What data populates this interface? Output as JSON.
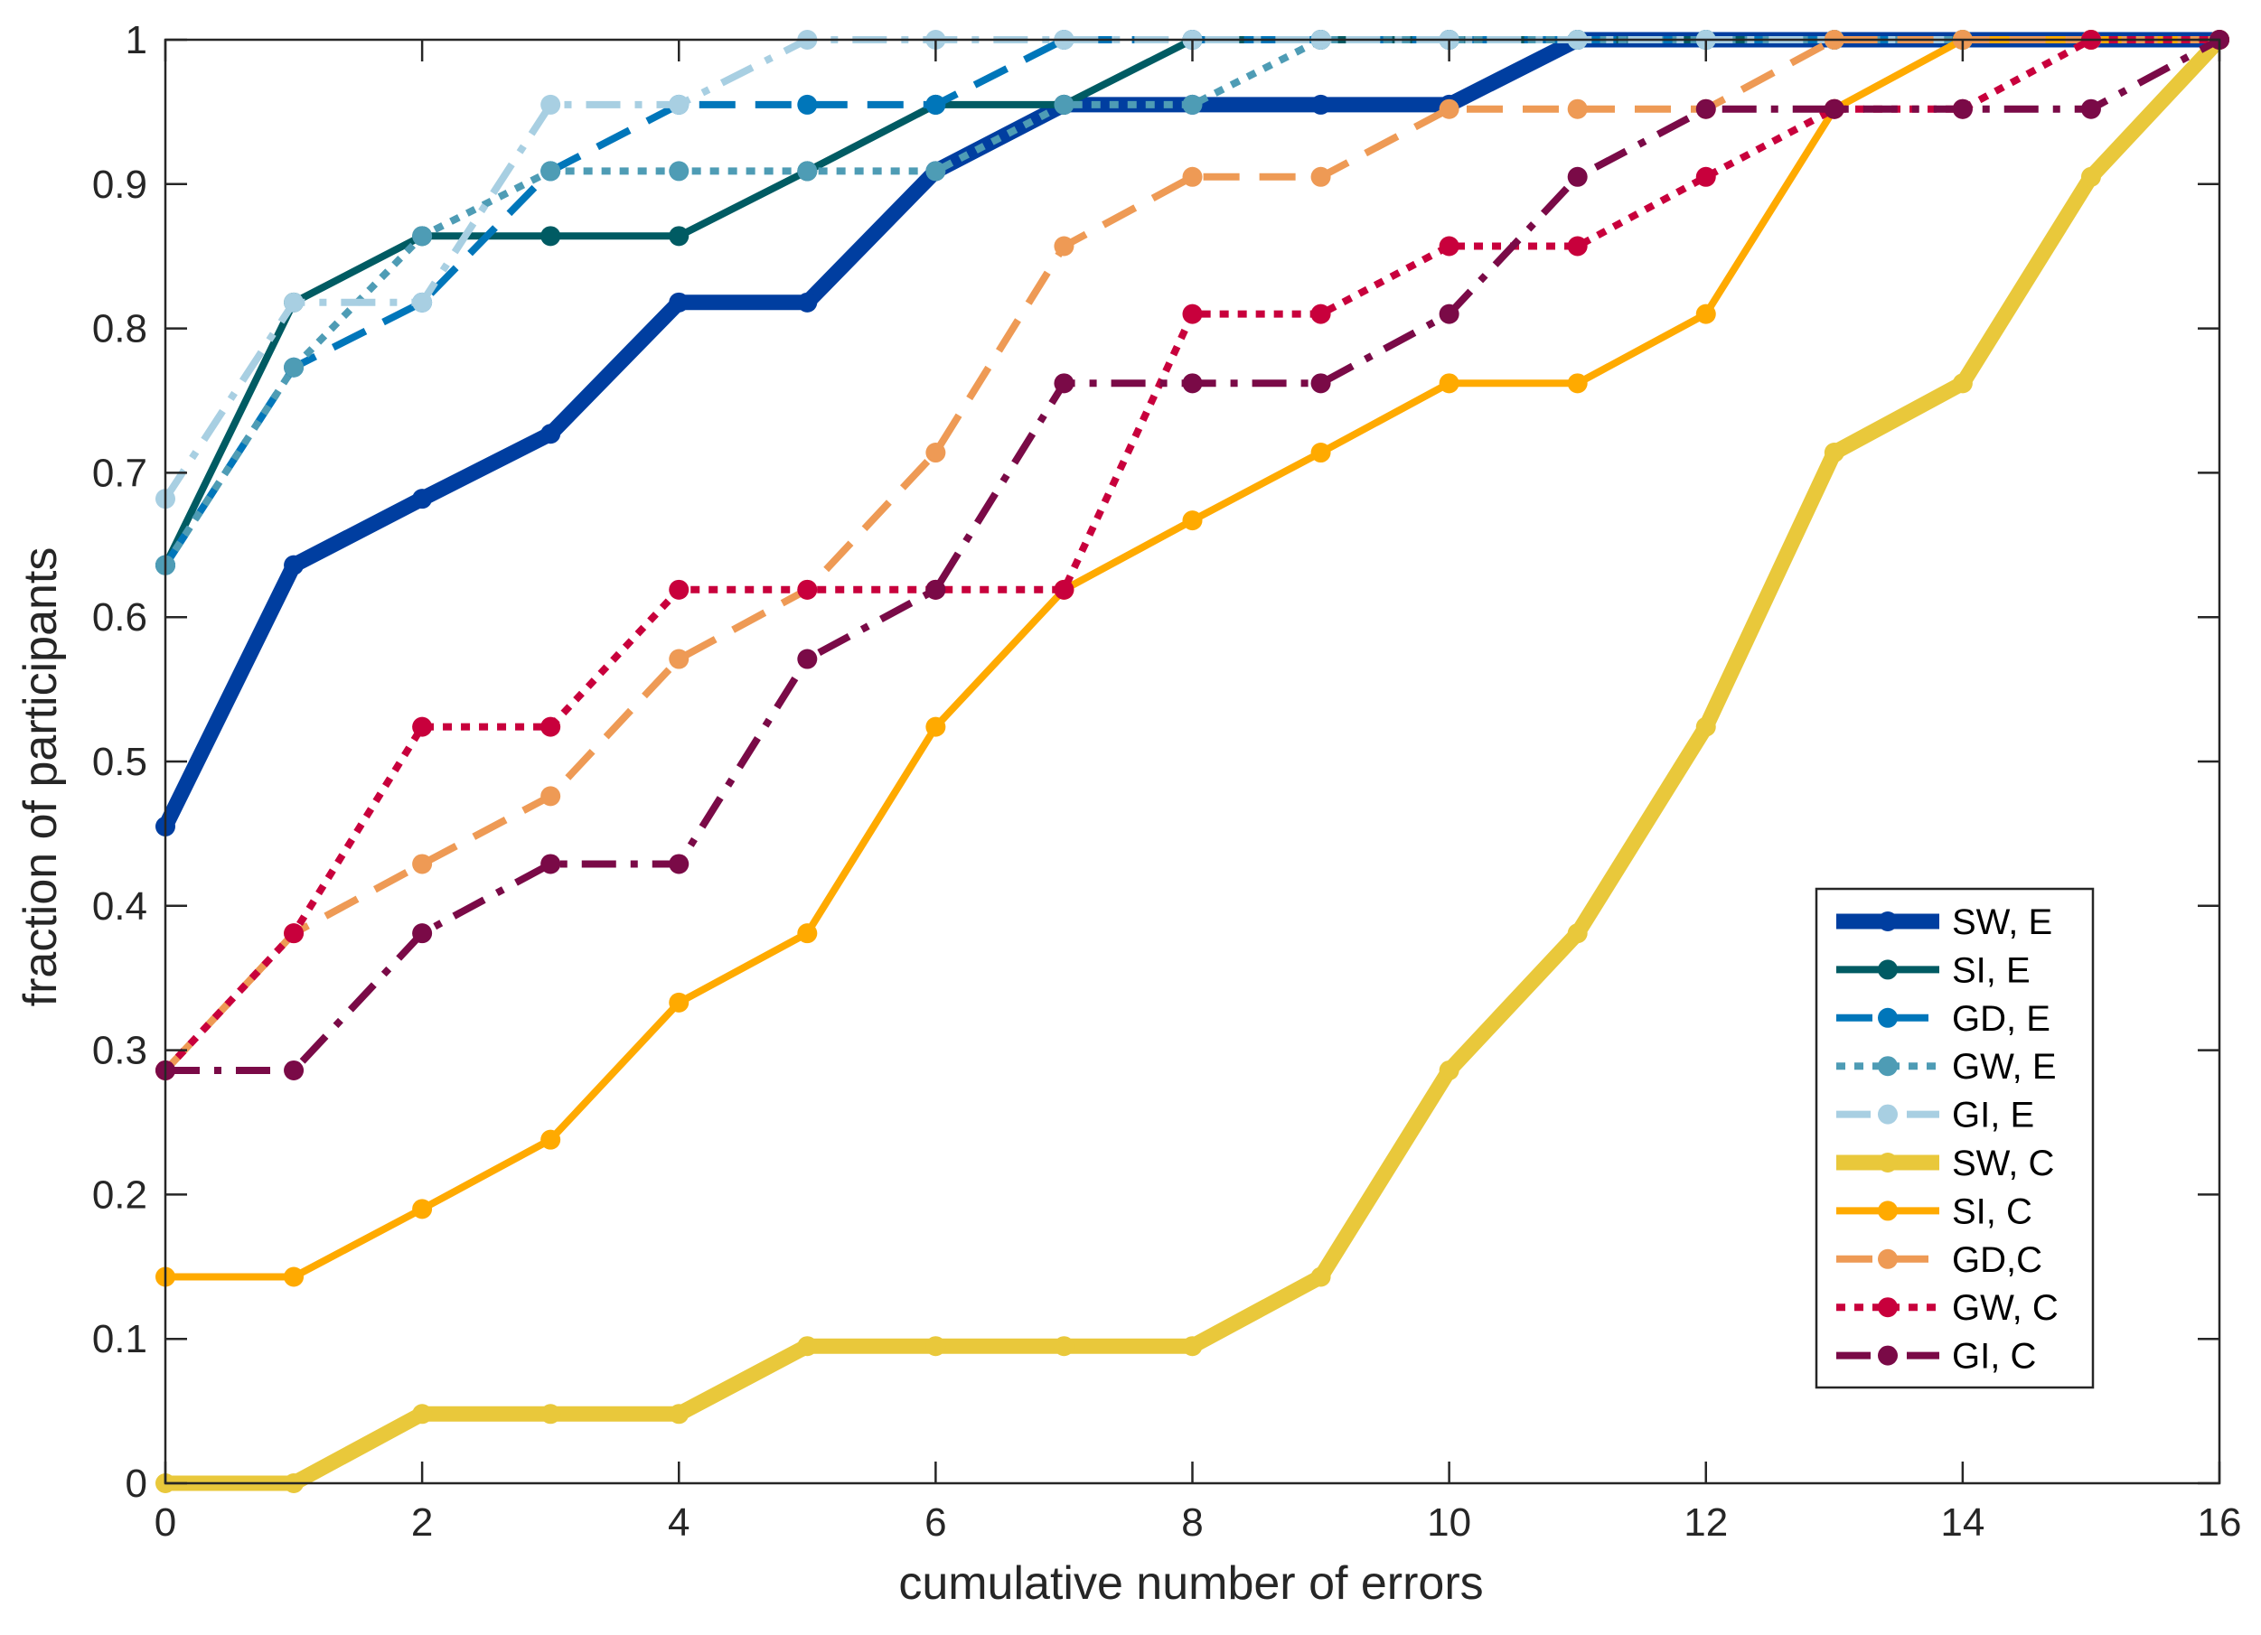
{
  "chart_data": {
    "type": "line",
    "title": "",
    "xlabel": "cumulative number of errors",
    "ylabel": "fraction of participants",
    "xlim": [
      0,
      16
    ],
    "ylim": [
      0,
      1
    ],
    "xticks": [
      0,
      2,
      4,
      6,
      8,
      10,
      12,
      14,
      16
    ],
    "yticks": [
      0,
      0.1,
      0.2,
      0.3,
      0.4,
      0.5,
      0.6,
      0.7,
      0.8,
      0.9,
      1
    ],
    "x": [
      0,
      1,
      2,
      3,
      4,
      5,
      6,
      7,
      8,
      9,
      10,
      11,
      12,
      13,
      14,
      15,
      16
    ],
    "legend_position": "lower-right",
    "grid": false,
    "series": [
      {
        "name": "SW, E",
        "color": "#003EA0",
        "style": "solid",
        "weight": "heavy",
        "values": [
          0.455,
          0.636,
          0.682,
          0.727,
          0.818,
          0.818,
          0.909,
          0.955,
          0.955,
          0.955,
          0.955,
          1,
          1,
          1,
          1,
          1,
          1
        ]
      },
      {
        "name": "SI, E",
        "color": "#005B63",
        "style": "solid",
        "weight": "normal",
        "values": [
          0.636,
          0.818,
          0.864,
          0.864,
          0.864,
          0.909,
          0.955,
          0.955,
          1,
          1,
          1,
          1,
          1,
          1,
          1,
          1,
          1
        ]
      },
      {
        "name": "GD, E",
        "color": "#0076BA",
        "style": "dashed",
        "weight": "normal",
        "values": [
          0.636,
          0.773,
          0.818,
          0.909,
          0.955,
          0.955,
          0.955,
          1,
          1,
          1,
          1,
          1,
          1,
          1,
          1,
          1,
          1
        ]
      },
      {
        "name": "GW, E",
        "color": "#4E9CB5",
        "style": "dotted",
        "weight": "normal",
        "values": [
          0.636,
          0.773,
          0.864,
          0.909,
          0.909,
          0.909,
          0.909,
          0.955,
          0.955,
          1,
          1,
          1,
          1,
          1,
          1,
          1,
          1
        ]
      },
      {
        "name": "GI, E",
        "color": "#A8CFE2",
        "style": "dashdot",
        "weight": "normal",
        "values": [
          0.682,
          0.818,
          0.818,
          0.955,
          0.955,
          1,
          1,
          1,
          1,
          1,
          1,
          1,
          1,
          1,
          1,
          1,
          1
        ]
      },
      {
        "name": "SW, C",
        "color": "#E9C83B",
        "style": "solid",
        "weight": "heavy",
        "values": [
          0,
          0,
          0.048,
          0.048,
          0.048,
          0.095,
          0.095,
          0.095,
          0.095,
          0.143,
          0.286,
          0.381,
          0.524,
          0.714,
          0.762,
          0.905,
          1
        ]
      },
      {
        "name": "SI, C",
        "color": "#FFAA00",
        "style": "solid",
        "weight": "normal",
        "values": [
          0.143,
          0.143,
          0.19,
          0.238,
          0.333,
          0.381,
          0.524,
          0.619,
          0.667,
          0.714,
          0.762,
          0.762,
          0.81,
          0.952,
          1,
          1,
          1
        ]
      },
      {
        "name": "GD,C",
        "color": "#EE9A55",
        "style": "dashed",
        "weight": "normal",
        "values": [
          0.286,
          0.381,
          0.429,
          0.476,
          0.571,
          0.619,
          0.714,
          0.857,
          0.905,
          0.905,
          0.952,
          0.952,
          0.952,
          1,
          1,
          1,
          1
        ]
      },
      {
        "name": "GW, C",
        "color": "#C8003C",
        "style": "dotted",
        "weight": "normal",
        "values": [
          0.286,
          0.381,
          0.524,
          0.524,
          0.619,
          0.619,
          0.619,
          0.619,
          0.81,
          0.81,
          0.857,
          0.857,
          0.905,
          0.952,
          0.952,
          1,
          1
        ]
      },
      {
        "name": "GI, C",
        "color": "#7A0A47",
        "style": "dashdot",
        "weight": "normal",
        "values": [
          0.286,
          0.286,
          0.381,
          0.429,
          0.429,
          0.571,
          0.619,
          0.762,
          0.762,
          0.762,
          0.81,
          0.905,
          0.952,
          0.952,
          0.952,
          0.952,
          1
        ]
      }
    ]
  }
}
